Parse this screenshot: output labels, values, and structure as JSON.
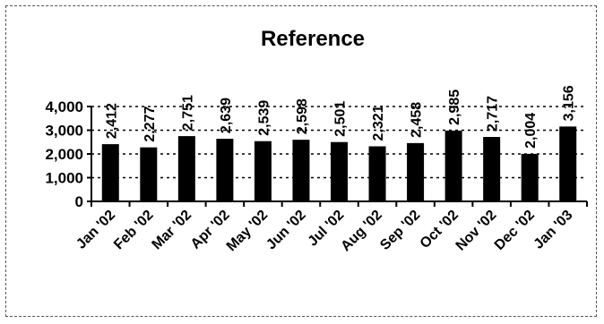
{
  "chart_data": {
    "type": "bar",
    "title": "Reference",
    "xlabel": "",
    "ylabel": "",
    "categories": [
      "Jan '02",
      "Feb '02",
      "Mar '02",
      "Apr '02",
      "May '02",
      "Jun '02",
      "Jul '02",
      "Aug '02",
      "Sep '02",
      "Oct '02",
      "Nov '02",
      "Dec '02",
      "Jan '03"
    ],
    "values": [
      2412,
      2277,
      2751,
      2639,
      2539,
      2598,
      2501,
      2321,
      2458,
      2985,
      2717,
      2004,
      3156
    ],
    "data_labels": [
      "2,412",
      "2,277",
      "2,751",
      "2,639",
      "2,539",
      "2,598",
      "2,501",
      "2,321",
      "2,458",
      "2,985",
      "2,717",
      "2,004",
      "3,156"
    ],
    "yticks": [
      0,
      1000,
      2000,
      3000,
      4000
    ],
    "ytick_labels": [
      "0",
      "1,000",
      "2,000",
      "3,000",
      "4,000"
    ],
    "ylim": [
      0,
      4000
    ],
    "grid": true,
    "legend": "none",
    "bar_color": "#000000"
  }
}
